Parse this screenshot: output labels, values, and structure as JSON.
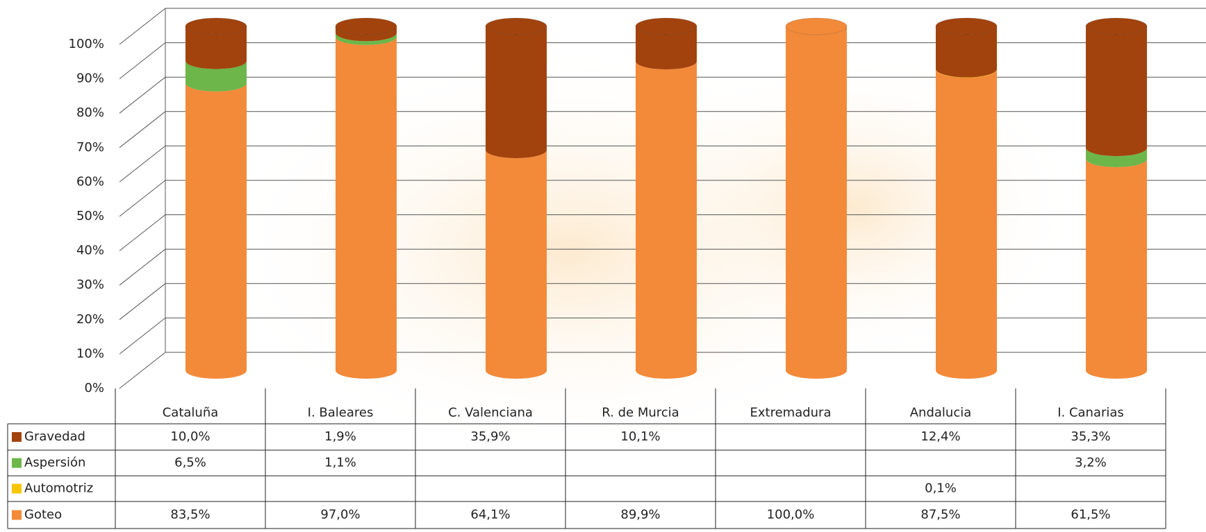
{
  "chart_data": {
    "type": "stacked-cylinder",
    "categories": [
      "Cataluña",
      "I. Baleares",
      "C. Valenciana",
      "R. de Murcia",
      "Extremadura",
      "Andalucia",
      "I. Canarias"
    ],
    "series": [
      {
        "name": "Gravedad",
        "color": "#a2430e",
        "values": [
          10.0,
          1.9,
          35.9,
          10.1,
          null,
          12.4,
          35.3
        ],
        "value_labels": [
          "10,0%",
          "1,9%",
          "35,9%",
          "10,1%",
          null,
          "12,4%",
          "35,3%"
        ]
      },
      {
        "name": "Aspersión",
        "color": "#6cb64a",
        "values": [
          6.5,
          1.1,
          null,
          null,
          null,
          null,
          3.2
        ],
        "value_labels": [
          "6,5%",
          "1,1%",
          null,
          null,
          null,
          null,
          "3,2%"
        ]
      },
      {
        "name": "Automotriz",
        "color": "#f7c600",
        "values": [
          null,
          null,
          null,
          null,
          null,
          0.1,
          null
        ],
        "value_labels": [
          null,
          null,
          null,
          null,
          null,
          "0,1%",
          null
        ]
      },
      {
        "name": "Goteo",
        "color": "#f28a3a",
        "values": [
          83.5,
          97.0,
          64.1,
          89.9,
          100.0,
          87.5,
          61.5
        ],
        "value_labels": [
          "83,5%",
          "97,0%",
          "64,1%",
          "89,9%",
          "100,0%",
          "87,5%",
          "61,5%"
        ]
      }
    ],
    "ylim": [
      0,
      100
    ],
    "yticks": [
      {
        "value": 0,
        "label": "0%"
      },
      {
        "value": 10,
        "label": "10%"
      },
      {
        "value": 20,
        "label": "20%"
      },
      {
        "value": 30,
        "label": "30%"
      },
      {
        "value": 40,
        "label": "40%"
      },
      {
        "value": 50,
        "label": "50%"
      },
      {
        "value": 60,
        "label": "60%"
      },
      {
        "value": 70,
        "label": "70%"
      },
      {
        "value": 80,
        "label": "80%"
      },
      {
        "value": 90,
        "label": "90%"
      },
      {
        "value": 100,
        "label": "100%"
      }
    ],
    "grid": true
  }
}
